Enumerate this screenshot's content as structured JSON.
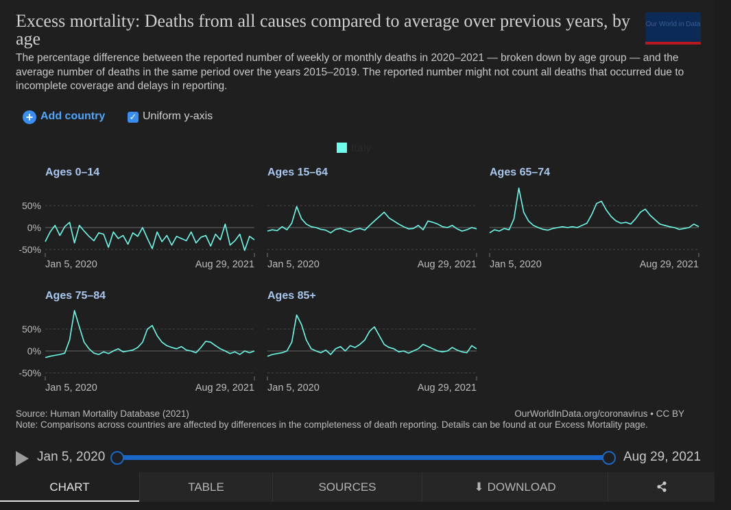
{
  "header": {
    "title": "Excess mortality: Deaths from all causes compared to average over previous years, by age",
    "subtitle": "The percentage difference between the reported number of weekly or monthly deaths in 2020–2021 — broken down by age group — and the average number of deaths in the same period over the years 2015–2019. The reported number might not count all deaths that occurred due to incomplete coverage and delays in reporting.",
    "logo_text": "Our World in Data"
  },
  "controls": {
    "add_country_label": "Add country",
    "uniform_label": "Uniform y-axis",
    "uniform_checked": true
  },
  "legend": {
    "label": "Italy",
    "color": "#6efcec"
  },
  "chart_data": {
    "type": "line",
    "series_name": "Italy",
    "line_color": "#6efcec",
    "y_ticks": [
      "50%",
      "0%",
      "-50%"
    ],
    "ylim": [
      -50,
      50
    ],
    "x_start_label": "Jan 5, 2020",
    "x_end_label": "Aug 29, 2021",
    "panels": [
      {
        "title": "Ages 0–14",
        "x": [
          "2020-01-05",
          "2020-01-19",
          "2020-02-02",
          "2020-02-16",
          "2020-03-01",
          "2020-03-15",
          "2020-03-29",
          "2020-04-12",
          "2020-04-26",
          "2020-05-10",
          "2020-05-24",
          "2020-06-07",
          "2020-06-21",
          "2020-07-05",
          "2020-07-19",
          "2020-08-02",
          "2020-08-16",
          "2020-08-30",
          "2020-09-13",
          "2020-09-27",
          "2020-10-11",
          "2020-10-25",
          "2020-11-08",
          "2020-11-22",
          "2020-12-06",
          "2020-12-20",
          "2021-01-03",
          "2021-01-17",
          "2021-01-31",
          "2021-02-14",
          "2021-02-28",
          "2021-03-14",
          "2021-03-28",
          "2021-04-11",
          "2021-04-25",
          "2021-05-09",
          "2021-05-23",
          "2021-06-06",
          "2021-06-20",
          "2021-07-04",
          "2021-07-18",
          "2021-08-01",
          "2021-08-15",
          "2021-08-29"
        ],
        "y": [
          -32,
          -10,
          5,
          -18,
          2,
          12,
          -35,
          5,
          -8,
          -20,
          -30,
          -12,
          -15,
          -45,
          -10,
          -25,
          -18,
          -38,
          -12,
          -20,
          0,
          -25,
          -48,
          -10,
          -32,
          -18,
          -40,
          -20,
          -25,
          -30,
          -10,
          -35,
          -22,
          -18,
          -42,
          -15,
          -28,
          8,
          -40,
          -30,
          -15,
          -52,
          -20,
          -28
        ]
      },
      {
        "title": "Ages 15–64",
        "x": [
          "2020-01-05",
          "2020-01-19",
          "2020-02-02",
          "2020-02-16",
          "2020-03-01",
          "2020-03-15",
          "2020-03-29",
          "2020-04-12",
          "2020-04-26",
          "2020-05-10",
          "2020-05-24",
          "2020-06-07",
          "2020-06-21",
          "2020-07-05",
          "2020-07-19",
          "2020-08-02",
          "2020-08-16",
          "2020-08-30",
          "2020-09-13",
          "2020-09-27",
          "2020-10-11",
          "2020-10-25",
          "2020-11-08",
          "2020-11-22",
          "2020-12-06",
          "2020-12-20",
          "2021-01-03",
          "2021-01-17",
          "2021-01-31",
          "2021-02-14",
          "2021-02-28",
          "2021-03-14",
          "2021-03-28",
          "2021-04-11",
          "2021-04-25",
          "2021-05-09",
          "2021-05-23",
          "2021-06-06",
          "2021-06-20",
          "2021-07-04",
          "2021-07-18",
          "2021-08-01",
          "2021-08-15",
          "2021-08-29"
        ],
        "y": [
          -8,
          -5,
          -7,
          2,
          -5,
          10,
          48,
          20,
          8,
          2,
          0,
          -4,
          -6,
          -12,
          -4,
          -2,
          -6,
          -10,
          -4,
          -2,
          -6,
          5,
          15,
          25,
          35,
          22,
          15,
          8,
          2,
          -3,
          -2,
          5,
          -5,
          15,
          12,
          8,
          2,
          0,
          5,
          -3,
          -8,
          -5,
          0,
          -3
        ]
      },
      {
        "title": "Ages 65–74",
        "x": [
          "2020-01-05",
          "2020-01-19",
          "2020-02-02",
          "2020-02-16",
          "2020-03-01",
          "2020-03-15",
          "2020-03-29",
          "2020-04-12",
          "2020-04-26",
          "2020-05-10",
          "2020-05-24",
          "2020-06-07",
          "2020-06-21",
          "2020-07-05",
          "2020-07-19",
          "2020-08-02",
          "2020-08-16",
          "2020-08-30",
          "2020-09-13",
          "2020-09-27",
          "2020-10-11",
          "2020-10-25",
          "2020-11-08",
          "2020-11-22",
          "2020-12-06",
          "2020-12-20",
          "2021-01-03",
          "2021-01-17",
          "2021-01-31",
          "2021-02-14",
          "2021-02-28",
          "2021-03-14",
          "2021-03-28",
          "2021-04-11",
          "2021-04-25",
          "2021-05-09",
          "2021-05-23",
          "2021-06-06",
          "2021-06-20",
          "2021-07-04",
          "2021-07-18",
          "2021-08-01",
          "2021-08-15",
          "2021-08-29"
        ],
        "y": [
          -12,
          -5,
          -8,
          -2,
          -5,
          20,
          90,
          35,
          15,
          5,
          0,
          -4,
          -6,
          -2,
          0,
          2,
          0,
          2,
          0,
          5,
          10,
          30,
          55,
          60,
          40,
          25,
          15,
          10,
          12,
          8,
          20,
          35,
          42,
          28,
          18,
          8,
          5,
          2,
          0,
          -4,
          -2,
          0,
          8,
          2
        ]
      },
      {
        "title": "Ages 75–84",
        "x": [
          "2020-01-05",
          "2020-01-19",
          "2020-02-02",
          "2020-02-16",
          "2020-03-01",
          "2020-03-15",
          "2020-03-29",
          "2020-04-12",
          "2020-04-26",
          "2020-05-10",
          "2020-05-24",
          "2020-06-07",
          "2020-06-21",
          "2020-07-05",
          "2020-07-19",
          "2020-08-02",
          "2020-08-16",
          "2020-08-30",
          "2020-09-13",
          "2020-09-27",
          "2020-10-11",
          "2020-10-25",
          "2020-11-08",
          "2020-11-22",
          "2020-12-06",
          "2020-12-20",
          "2021-01-03",
          "2021-01-17",
          "2021-01-31",
          "2021-02-14",
          "2021-02-28",
          "2021-03-14",
          "2021-03-28",
          "2021-04-11",
          "2021-04-25",
          "2021-05-09",
          "2021-05-23",
          "2021-06-06",
          "2021-06-20",
          "2021-07-04",
          "2021-07-18",
          "2021-08-01",
          "2021-08-15",
          "2021-08-29"
        ],
        "y": [
          -15,
          -12,
          -10,
          -8,
          -5,
          25,
          92,
          55,
          20,
          5,
          -5,
          -8,
          -2,
          -6,
          0,
          5,
          -2,
          0,
          2,
          8,
          20,
          50,
          58,
          35,
          20,
          12,
          8,
          5,
          10,
          2,
          0,
          -4,
          8,
          22,
          20,
          12,
          5,
          0,
          -6,
          -2,
          -8,
          0,
          -4,
          0
        ]
      },
      {
        "title": "Ages 85+",
        "x": [
          "2020-01-05",
          "2020-01-19",
          "2020-02-02",
          "2020-02-16",
          "2020-03-01",
          "2020-03-15",
          "2020-03-29",
          "2020-04-12",
          "2020-04-26",
          "2020-05-10",
          "2020-05-24",
          "2020-06-07",
          "2020-06-21",
          "2020-07-05",
          "2020-07-19",
          "2020-08-02",
          "2020-08-16",
          "2020-08-30",
          "2020-09-13",
          "2020-09-27",
          "2020-10-11",
          "2020-10-25",
          "2020-11-08",
          "2020-11-22",
          "2020-12-06",
          "2020-12-20",
          "2021-01-03",
          "2021-01-17",
          "2021-01-31",
          "2021-02-14",
          "2021-02-28",
          "2021-03-14",
          "2021-03-28",
          "2021-04-11",
          "2021-04-25",
          "2021-05-09",
          "2021-05-23",
          "2021-06-06",
          "2021-06-20",
          "2021-07-04",
          "2021-07-18",
          "2021-08-01",
          "2021-08-15",
          "2021-08-29"
        ],
        "y": [
          -12,
          -8,
          -6,
          -4,
          0,
          20,
          82,
          60,
          25,
          5,
          0,
          -4,
          2,
          -8,
          5,
          10,
          0,
          12,
          8,
          15,
          25,
          45,
          55,
          35,
          15,
          8,
          5,
          -2,
          0,
          -5,
          0,
          5,
          15,
          10,
          5,
          0,
          -2,
          0,
          8,
          2,
          -2,
          -4,
          12,
          5
        ]
      }
    ]
  },
  "footer": {
    "source": "Source: Human Mortality Database (2021)",
    "credit": "OurWorldInData.org/coronavirus • CC BY",
    "note": "Note: Comparisons across countries are affected by differences in the completeness of death reporting. Details can be found at our Excess Mortality page."
  },
  "timeline": {
    "start_label": "Jan 5, 2020",
    "end_label": "Aug 29, 2021",
    "range_fraction": [
      0,
      1
    ]
  },
  "tabs": {
    "chart": "CHART",
    "table": "TABLE",
    "sources": "SOURCES",
    "download": "DOWNLOAD"
  }
}
